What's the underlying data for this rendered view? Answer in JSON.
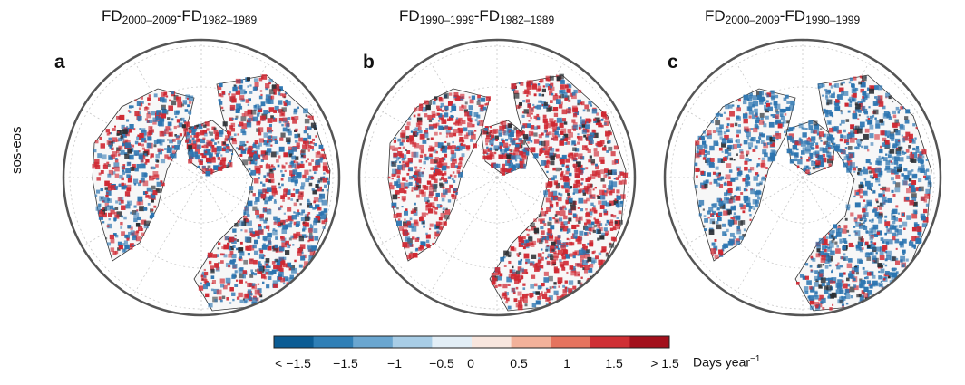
{
  "row_label": "sos-eos",
  "panels": [
    {
      "letter": "a",
      "title_main1": "FD",
      "title_sub1": "2000–2009",
      "title_sep": "-",
      "title_main2": "FD",
      "title_sub2": "1982–1989"
    },
    {
      "letter": "b",
      "title_main1": "FD",
      "title_sub1": "1990–1999",
      "title_sep": "-",
      "title_main2": "FD",
      "title_sub2": "1982–1989"
    },
    {
      "letter": "c",
      "title_main1": "FD",
      "title_sub1": "2000–2009",
      "title_sep": "-",
      "title_main2": "FD",
      "title_sub2": "1990–1999"
    }
  ],
  "colorbar": {
    "ticks": [
      "< −1.5",
      "−1.5",
      "−1",
      "−0.5",
      "0",
      "0.5",
      "1",
      "1.5",
      "> 1.5"
    ],
    "unit_main": "Days year",
    "unit_sup": "−1",
    "colors": [
      "#0b5c94",
      "#2f7fb6",
      "#6aa6d0",
      "#a8cde6",
      "#e2eef6",
      "#f8e6de",
      "#f2b19a",
      "#e5735e",
      "#cf2f34",
      "#a3101c"
    ]
  },
  "map_colors": {
    "negative": "#2b74b0",
    "positive": "#cf2731",
    "masked": "#2a2e33",
    "land_outline": "#333333",
    "frame": "#555555",
    "graticule": "#c8c8c8"
  },
  "panel_tendencies": [
    "mixed",
    "positive",
    "negative"
  ]
}
